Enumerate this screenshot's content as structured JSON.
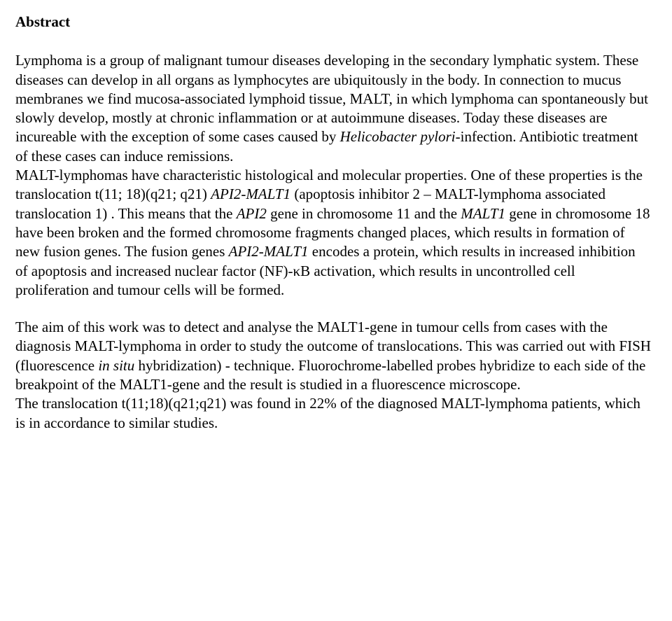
{
  "heading": "Abstract",
  "para1": {
    "s1": "Lymphoma is a group of malignant tumour diseases developing in the secondary lymphatic system. These diseases can develop in all organs as lymphocytes are ubiquitously in the body. In connection to mucus membranes we find mucosa-associated lymphoid tissue, MALT, in which lymphoma can spontaneously but slowly develop, mostly at chronic inflammation or at autoimmune diseases. Today these diseases are incureable with the exception of some cases caused by ",
    "i1": "Helicobacter pylori-",
    "s2": "infection. Antibiotic treatment of these cases can induce remissions.",
    "s3": "MALT-lymphomas have characteristic histological and molecular properties. One of these properties is the translocation t(11; 18)(q21; q21) ",
    "i2": "API2-MALT1",
    "s4": " (apoptosis inhibitor 2 – MALT-lymphoma associated translocation 1) . This means that the ",
    "i3": "API2",
    "s5": " gene in chromosome 11 and the ",
    "i4": "MALT1",
    "s6": " gene in chromosome 18 have been broken and the formed chromosome fragments changed places, which results in formation of new fusion genes. The fusion genes ",
    "i5": "API2-MALT1",
    "s7": " encodes a protein, which results in increased inhibition of apoptosis and increased nuclear factor (NF)-κB activation, which results in uncontrolled cell proliferation and tumour cells will be formed."
  },
  "para2": {
    "s1": "The aim of this work was to detect and analyse the MALT1-gene in tumour cells from cases with the diagnosis MALT-lymphoma in order to study the outcome of translocations. This was carried out with FISH (fluorescence ",
    "i1": "in situ",
    "s2": " hybridization) - technique. Fluorochrome-labelled probes hybridize to each side of the breakpoint of the MALT1-gene and the result is studied in a fluorescence microscope.",
    "s3": "The translocation t(11;18)(q21;q21) was found in 22% of the diagnosed MALT-lymphoma patients, which is in accordance to similar studies."
  },
  "style": {
    "font_family": "Times New Roman",
    "font_size_pt": 16,
    "heading_weight": "bold",
    "text_color": "#000000",
    "background_color": "#ffffff",
    "line_height": 1.3
  }
}
